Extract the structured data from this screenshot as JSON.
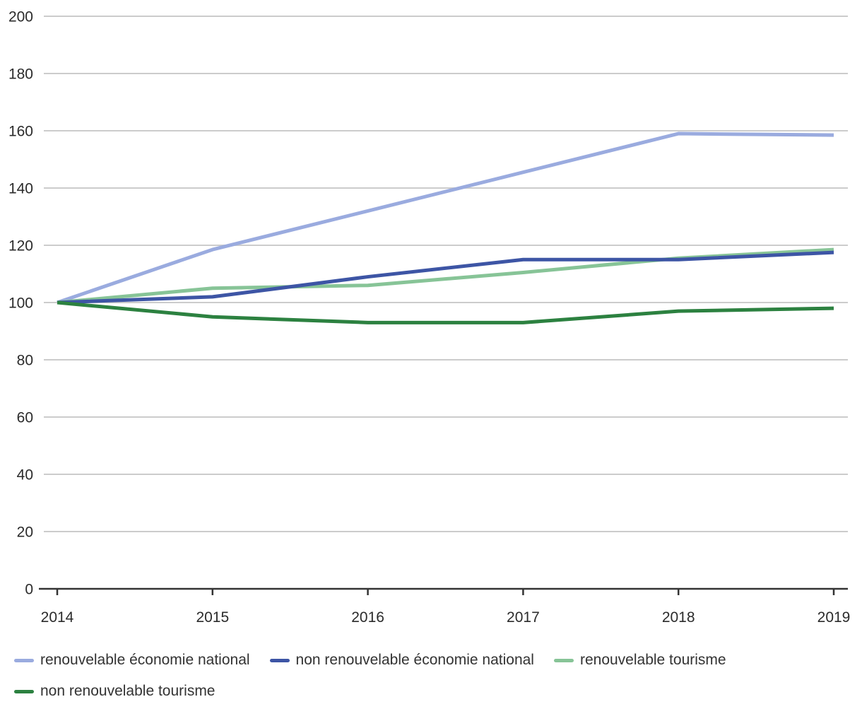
{
  "chart_data": {
    "type": "line",
    "x_labels": [
      "2014",
      "2015",
      "2016",
      "2017",
      "2018",
      "2019"
    ],
    "y_tick_labels": [
      "0",
      "20",
      "40",
      "60",
      "80",
      "100",
      "120",
      "140",
      "160",
      "180",
      "200"
    ],
    "ylim": [
      0,
      200
    ],
    "ytick_step": 20,
    "grid": true,
    "legend_position": "bottom",
    "series": [
      {
        "name": "renouvelable économie national",
        "color": "#9aabdf",
        "values": [
          100,
          118.5,
          132,
          145.5,
          159,
          158.5
        ]
      },
      {
        "name": "non renouvelable économie national",
        "color": "#3d55a5",
        "values": [
          100,
          102,
          109,
          115,
          115,
          117.5
        ]
      },
      {
        "name": "renouvelable tourisme",
        "color": "#87c497",
        "values": [
          100,
          105,
          106,
          110.5,
          115.5,
          118.5
        ]
      },
      {
        "name": "non renouvelable tourisme",
        "color": "#2c8140",
        "values": [
          100,
          95,
          93,
          93,
          97,
          98
        ]
      }
    ],
    "colors": {
      "gridline": "#cccccc",
      "axis_line": "#333333",
      "tick_label": "#2b2b2b",
      "legend_text": "#333333",
      "background": "#ffffff"
    }
  }
}
